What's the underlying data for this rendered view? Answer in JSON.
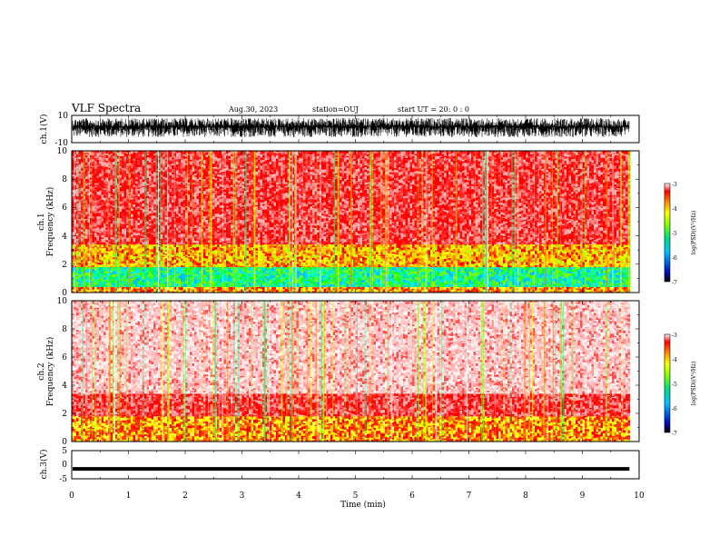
{
  "header": {
    "title": "VLF Spectra",
    "date": "Aug.30, 2023",
    "station": "station=OUJ",
    "start": "start  UT  =   20: 0  : 0"
  },
  "chart_data": [
    {
      "type": "line",
      "panel": "ch1-waveform",
      "ylabel": "ch.1(V)",
      "ylim": [
        -10,
        10
      ],
      "y_ticks": [
        "10",
        "-10"
      ],
      "signal_band_v": [
        -6,
        8
      ],
      "xlim": [
        0,
        10
      ]
    },
    {
      "type": "heatmap",
      "panel": "ch1-spectrogram",
      "ylabel_line1": "ch.1",
      "ylabel_line2": "Frequency (kHz)",
      "ylim": [
        0,
        10
      ],
      "y_ticks": [
        "0",
        "2",
        "4",
        "6",
        "8",
        "10"
      ],
      "data_end_min": 9.83,
      "bands_khz": [
        {
          "range": [
            0,
            0.4
          ],
          "level": "red-yellow"
        },
        {
          "range": [
            0.4,
            1.8
          ],
          "level": "green-cyan"
        },
        {
          "range": [
            1.8,
            3.4
          ],
          "level": "yellow-orange"
        },
        {
          "range": [
            3.4,
            10
          ],
          "level": "red"
        }
      ],
      "colorbar": {
        "ticks": [
          "-3",
          "-4",
          "-5",
          "-6",
          "-7"
        ],
        "range": [
          -7,
          -3
        ],
        "label": "log(PSD)(V²/Hz)"
      }
    },
    {
      "type": "heatmap",
      "panel": "ch2-spectrogram",
      "ylabel_line1": "ch.2",
      "ylabel_line2": "Frequency (kHz)",
      "ylim": [
        0,
        10
      ],
      "y_ticks": [
        "0",
        "2",
        "4",
        "6",
        "8",
        "10"
      ],
      "data_end_min": 9.83,
      "bands_khz": [
        {
          "range": [
            0,
            1.8
          ],
          "level": "red-yellow"
        },
        {
          "range": [
            1.8,
            3.4
          ],
          "level": "red"
        },
        {
          "range": [
            3.4,
            10
          ],
          "level": "pink-white"
        }
      ],
      "colorbar": {
        "ticks": [
          "-3",
          "-4",
          "-5",
          "-6",
          "-7"
        ],
        "range": [
          -7,
          -3
        ],
        "label": "log(PSD)(V²/Hz)"
      }
    },
    {
      "type": "line",
      "panel": "ch3-waveform",
      "ylabel": "ch.3(V)",
      "ylim": [
        -5,
        5
      ],
      "y_ticks": [
        "5",
        "0",
        "-5"
      ],
      "value_v": -1.5,
      "xlim": [
        0,
        10
      ]
    }
  ],
  "x_axis": {
    "label": "Time (min)",
    "range": [
      0,
      10
    ],
    "ticks": [
      "0",
      "1",
      "2",
      "3",
      "4",
      "5",
      "6",
      "7",
      "8",
      "9",
      "10"
    ]
  }
}
